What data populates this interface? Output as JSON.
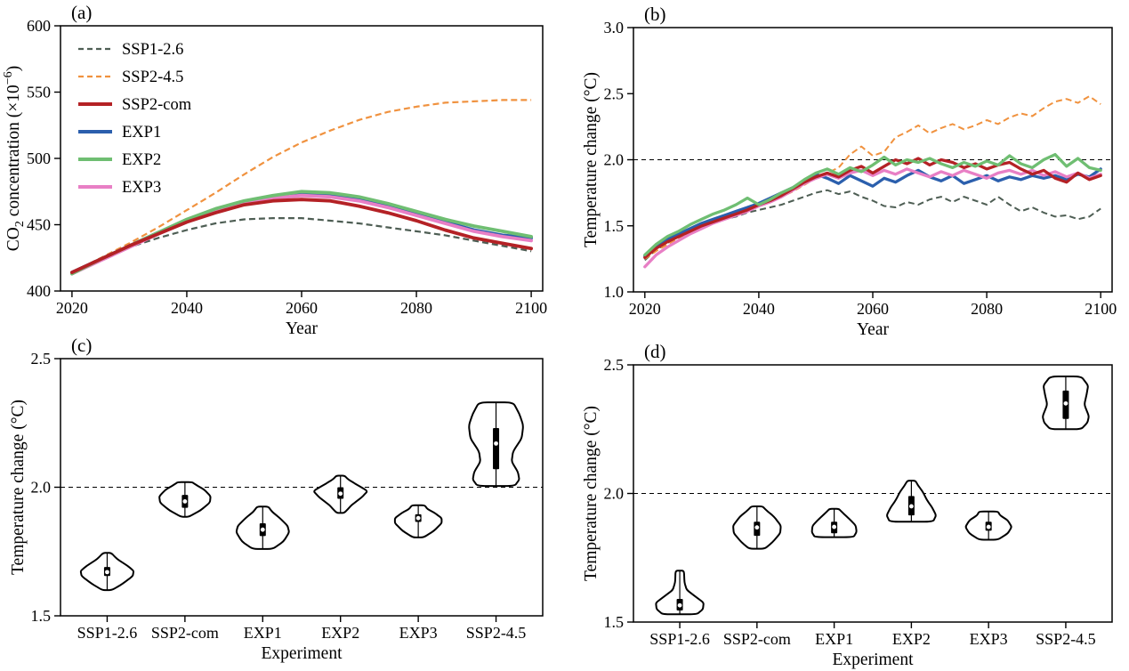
{
  "figure": {
    "background": "#ffffff",
    "panel_letters": [
      "(a)",
      "(b)",
      "(c)",
      "(d)"
    ]
  },
  "chart_data": [
    {
      "id": "a",
      "type": "line",
      "letter": "(a)",
      "xlabel": "Year",
      "ylabel_parts": [
        {
          "t": "CO"
        },
        {
          "t": "2",
          "pos": "sub"
        },
        {
          "t": " concentration (×10"
        },
        {
          "t": "−6",
          "pos": "sup"
        },
        {
          "t": ")"
        }
      ],
      "xlim": [
        2018,
        2102
      ],
      "ylim": [
        400,
        600
      ],
      "xticks": [
        2020,
        2040,
        2060,
        2080,
        2100
      ],
      "yticks": [
        400,
        450,
        500,
        550,
        600
      ],
      "ytick_decimals": 0,
      "legend": true,
      "refline": null,
      "draw_order": [
        0,
        1,
        3,
        5,
        4,
        2
      ],
      "x": [
        2020,
        2025,
        2030,
        2035,
        2040,
        2045,
        2050,
        2055,
        2060,
        2065,
        2070,
        2075,
        2080,
        2085,
        2090,
        2095,
        2100
      ],
      "series": [
        {
          "name": "SSP1-2.6",
          "color": "#4E5E54",
          "dash": [
            7,
            4
          ],
          "lw": 2.2,
          "values": [
            414,
            424,
            433,
            440,
            446,
            451,
            454,
            455,
            455,
            453,
            451,
            448,
            445,
            442,
            438,
            434,
            430
          ]
        },
        {
          "name": "SSP2-4.5",
          "color": "#F0923F",
          "dash": [
            7,
            4
          ],
          "lw": 2.2,
          "values": [
            414,
            425,
            436,
            448,
            461,
            474,
            488,
            501,
            512,
            521,
            529,
            535,
            539,
            542,
            543,
            544,
            544
          ]
        },
        {
          "name": "SSP2-com",
          "color": "#B42125",
          "dash": null,
          "lw": 3.8,
          "values": [
            414,
            424,
            434,
            443,
            452,
            459,
            465,
            468,
            469,
            468,
            464,
            459,
            453,
            446,
            440,
            436,
            432
          ]
        },
        {
          "name": "EXP1",
          "color": "#2B5FAD",
          "dash": null,
          "lw": 3.8,
          "values": [
            414,
            424,
            434,
            444,
            453,
            461,
            467,
            471,
            473,
            472,
            469,
            464,
            458,
            452,
            446,
            442,
            440
          ]
        },
        {
          "name": "EXP2",
          "color": "#6FBE72",
          "dash": null,
          "lw": 3.8,
          "values": [
            413,
            424,
            434,
            444,
            454,
            462,
            468,
            472,
            475,
            474,
            471,
            466,
            460,
            454,
            449,
            445,
            441
          ]
        },
        {
          "name": "EXP3",
          "color": "#E87FC5",
          "dash": null,
          "lw": 3.8,
          "values": [
            413,
            423,
            433,
            443,
            452,
            460,
            466,
            470,
            472,
            471,
            468,
            463,
            457,
            451,
            445,
            441,
            438
          ]
        }
      ]
    },
    {
      "id": "b",
      "type": "line",
      "letter": "(b)",
      "xlabel": "Year",
      "ylabel_parts": [
        {
          "t": "Temperature change (°C)"
        }
      ],
      "xlim": [
        2018,
        2102
      ],
      "ylim": [
        1.0,
        3.0
      ],
      "xticks": [
        2020,
        2040,
        2060,
        2080,
        2100
      ],
      "yticks": [
        1.0,
        1.5,
        2.0,
        2.5,
        3.0
      ],
      "ytick_decimals": 1,
      "legend": false,
      "refline": 2.0,
      "draw_order": [
        0,
        1,
        3,
        5,
        2,
        4
      ],
      "x": [
        2020,
        2022,
        2024,
        2026,
        2028,
        2030,
        2032,
        2034,
        2036,
        2038,
        2040,
        2042,
        2044,
        2046,
        2048,
        2050,
        2052,
        2054,
        2056,
        2058,
        2060,
        2062,
        2064,
        2066,
        2068,
        2070,
        2072,
        2074,
        2076,
        2078,
        2080,
        2082,
        2084,
        2086,
        2088,
        2090,
        2092,
        2094,
        2096,
        2098,
        2100
      ],
      "series": [
        {
          "name": "SSP1-2.6",
          "color": "#4E5E54",
          "dash": [
            7,
            4
          ],
          "lw": 2.0,
          "values": [
            1.24,
            1.32,
            1.37,
            1.42,
            1.45,
            1.49,
            1.52,
            1.55,
            1.57,
            1.6,
            1.62,
            1.64,
            1.66,
            1.69,
            1.72,
            1.75,
            1.77,
            1.74,
            1.76,
            1.72,
            1.69,
            1.65,
            1.64,
            1.68,
            1.66,
            1.7,
            1.72,
            1.68,
            1.72,
            1.69,
            1.66,
            1.72,
            1.66,
            1.61,
            1.64,
            1.6,
            1.57,
            1.58,
            1.55,
            1.57,
            1.63
          ]
        },
        {
          "name": "SSP2-4.5",
          "color": "#F0923F",
          "dash": [
            7,
            4
          ],
          "lw": 2.0,
          "values": [
            1.25,
            1.31,
            1.36,
            1.41,
            1.45,
            1.49,
            1.52,
            1.55,
            1.59,
            1.62,
            1.65,
            1.69,
            1.72,
            1.76,
            1.81,
            1.86,
            1.9,
            1.94,
            2.04,
            2.1,
            2.03,
            2.06,
            2.17,
            2.21,
            2.26,
            2.2,
            2.24,
            2.27,
            2.23,
            2.26,
            2.3,
            2.27,
            2.32,
            2.35,
            2.33,
            2.39,
            2.44,
            2.46,
            2.43,
            2.48,
            2.42
          ]
        },
        {
          "name": "SSP2-com",
          "color": "#B42125",
          "dash": null,
          "lw": 3.3,
          "values": [
            1.26,
            1.33,
            1.38,
            1.42,
            1.46,
            1.5,
            1.53,
            1.56,
            1.59,
            1.62,
            1.66,
            1.69,
            1.73,
            1.78,
            1.83,
            1.87,
            1.9,
            1.87,
            1.92,
            1.95,
            1.9,
            1.95,
            2.0,
            1.97,
            2.01,
            1.96,
            2.0,
            1.98,
            1.94,
            1.97,
            1.93,
            1.96,
            1.98,
            1.93,
            1.89,
            1.92,
            1.86,
            1.83,
            1.9,
            1.85,
            1.88
          ]
        },
        {
          "name": "EXP1",
          "color": "#2B5FAD",
          "dash": null,
          "lw": 3.3,
          "values": [
            1.27,
            1.35,
            1.4,
            1.44,
            1.48,
            1.52,
            1.55,
            1.58,
            1.61,
            1.64,
            1.67,
            1.71,
            1.75,
            1.79,
            1.84,
            1.89,
            1.86,
            1.82,
            1.88,
            1.84,
            1.8,
            1.86,
            1.83,
            1.88,
            1.92,
            1.87,
            1.84,
            1.88,
            1.82,
            1.85,
            1.88,
            1.84,
            1.87,
            1.85,
            1.88,
            1.86,
            1.88,
            1.85,
            1.89,
            1.87,
            1.93
          ]
        },
        {
          "name": "EXP2",
          "color": "#6FBE72",
          "dash": null,
          "lw": 3.3,
          "values": [
            1.28,
            1.36,
            1.42,
            1.46,
            1.51,
            1.55,
            1.59,
            1.62,
            1.66,
            1.71,
            1.66,
            1.7,
            1.75,
            1.79,
            1.85,
            1.9,
            1.93,
            1.89,
            1.94,
            1.91,
            1.96,
            2.02,
            1.96,
            2.0,
            1.98,
            2.01,
            1.97,
            1.94,
            1.98,
            1.95,
            1.99,
            1.96,
            2.03,
            1.97,
            1.94,
            2.0,
            2.04,
            1.95,
            2.01,
            1.94,
            1.92
          ]
        },
        {
          "name": "EXP3",
          "color": "#E87FC5",
          "dash": null,
          "lw": 3.3,
          "values": [
            1.19,
            1.28,
            1.34,
            1.39,
            1.44,
            1.48,
            1.52,
            1.55,
            1.58,
            1.61,
            1.65,
            1.68,
            1.72,
            1.77,
            1.82,
            1.86,
            1.89,
            1.86,
            1.9,
            1.92,
            1.88,
            1.92,
            1.89,
            1.93,
            1.9,
            1.87,
            1.91,
            1.88,
            1.92,
            1.89,
            1.86,
            1.9,
            1.92,
            1.89,
            1.92,
            1.88,
            1.91,
            1.87,
            1.9,
            1.86,
            1.89
          ]
        }
      ]
    },
    {
      "id": "c",
      "type": "violin",
      "letter": "(c)",
      "xlabel": "Experiment",
      "ylabel_parts": [
        {
          "t": "Temperature change (°C)"
        }
      ],
      "ylim": [
        1.5,
        2.5
      ],
      "yticks": [
        1.5,
        2.0,
        2.5
      ],
      "ytick_decimals": 1,
      "refline": 2.0,
      "categories": [
        "SSP1-2.6",
        "SSP2-com",
        "EXP1",
        "EXP2",
        "EXP3",
        "SSP2-4.5"
      ],
      "violins": [
        {
          "label": "SSP1-2.6",
          "min": 1.6,
          "q1": 1.655,
          "median": 1.67,
          "q3": 1.69,
          "max": 1.745,
          "profile": [
            [
              1.6,
              0.06
            ],
            [
              1.625,
              0.2
            ],
            [
              1.655,
              0.33
            ],
            [
              1.675,
              0.34
            ],
            [
              1.695,
              0.26
            ],
            [
              1.72,
              0.13
            ],
            [
              1.745,
              0.05
            ]
          ]
        },
        {
          "label": "SSP2-com",
          "min": 1.885,
          "q1": 1.92,
          "median": 1.945,
          "q3": 1.97,
          "max": 2.02,
          "profile": [
            [
              1.885,
              0.05
            ],
            [
              1.91,
              0.2
            ],
            [
              1.94,
              0.32
            ],
            [
              1.965,
              0.33
            ],
            [
              1.99,
              0.25
            ],
            [
              2.01,
              0.14
            ],
            [
              2.02,
              0.09
            ]
          ]
        },
        {
          "label": "EXP1",
          "min": 1.76,
          "q1": 1.81,
          "median": 1.835,
          "q3": 1.86,
          "max": 1.925,
          "profile": [
            [
              1.76,
              0.13
            ],
            [
              1.79,
              0.27
            ],
            [
              1.825,
              0.34
            ],
            [
              1.85,
              0.32
            ],
            [
              1.88,
              0.22
            ],
            [
              1.905,
              0.12
            ],
            [
              1.925,
              0.07
            ]
          ]
        },
        {
          "label": "EXP2",
          "min": 1.9,
          "q1": 1.955,
          "median": 1.975,
          "q3": 2.0,
          "max": 2.045,
          "profile": [
            [
              1.9,
              0.05
            ],
            [
              1.93,
              0.14
            ],
            [
              1.96,
              0.27
            ],
            [
              1.985,
              0.35
            ],
            [
              2.01,
              0.21
            ],
            [
              2.03,
              0.1
            ],
            [
              2.045,
              0.05
            ]
          ]
        },
        {
          "label": "EXP3",
          "min": 1.805,
          "q1": 1.865,
          "median": 1.88,
          "q3": 1.895,
          "max": 1.93,
          "profile": [
            [
              1.805,
              0.07
            ],
            [
              1.83,
              0.2
            ],
            [
              1.86,
              0.3
            ],
            [
              1.88,
              0.3
            ],
            [
              1.9,
              0.21
            ],
            [
              1.915,
              0.12
            ],
            [
              1.93,
              0.08
            ]
          ]
        },
        {
          "label": "SSP2-4.5",
          "min": 2.005,
          "q1": 2.07,
          "median": 2.17,
          "q3": 2.23,
          "max": 2.33,
          "profile": [
            [
              2.005,
              0.24
            ],
            [
              2.03,
              0.3
            ],
            [
              2.06,
              0.28
            ],
            [
              2.1,
              0.2
            ],
            [
              2.14,
              0.22
            ],
            [
              2.19,
              0.33
            ],
            [
              2.24,
              0.35
            ],
            [
              2.285,
              0.3
            ],
            [
              2.33,
              0.22
            ]
          ]
        }
      ]
    },
    {
      "id": "d",
      "type": "violin",
      "letter": "(d)",
      "xlabel": "Experiment",
      "ylabel_parts": [
        {
          "t": "Temperature change (°C)"
        }
      ],
      "ylim": [
        1.5,
        2.5
      ],
      "yticks": [
        1.5,
        2.0,
        2.5
      ],
      "ytick_decimals": 1,
      "refline": 2.0,
      "categories": [
        "SSP1-2.6",
        "SSP2-com",
        "EXP1",
        "EXP2",
        "EXP3",
        "SSP2-4.5"
      ],
      "violins": [
        {
          "label": "SSP1-2.6",
          "min": 1.53,
          "q1": 1.545,
          "median": 1.565,
          "q3": 1.59,
          "max": 1.7,
          "profile": [
            [
              1.53,
              0.22
            ],
            [
              1.55,
              0.3
            ],
            [
              1.575,
              0.31
            ],
            [
              1.6,
              0.2
            ],
            [
              1.625,
              0.09
            ],
            [
              1.655,
              0.06
            ],
            [
              1.7,
              0.055
            ]
          ]
        },
        {
          "label": "SSP2-com",
          "min": 1.785,
          "q1": 1.835,
          "median": 1.868,
          "q3": 1.89,
          "max": 1.95,
          "profile": [
            [
              1.785,
              0.1
            ],
            [
              1.81,
              0.2
            ],
            [
              1.845,
              0.3
            ],
            [
              1.875,
              0.31
            ],
            [
              1.91,
              0.22
            ],
            [
              1.935,
              0.12
            ],
            [
              1.95,
              0.07
            ]
          ]
        },
        {
          "label": "EXP1",
          "min": 1.83,
          "q1": 1.845,
          "median": 1.87,
          "q3": 1.89,
          "max": 1.94,
          "profile": [
            [
              1.83,
              0.25
            ],
            [
              1.85,
              0.29
            ],
            [
              1.875,
              0.28
            ],
            [
              1.9,
              0.2
            ],
            [
              1.925,
              0.11
            ],
            [
              1.94,
              0.06
            ]
          ]
        },
        {
          "label": "EXP2",
          "min": 1.89,
          "q1": 1.915,
          "median": 1.95,
          "q3": 1.99,
          "max": 2.05,
          "profile": [
            [
              1.89,
              0.28
            ],
            [
              1.915,
              0.32
            ],
            [
              1.945,
              0.27
            ],
            [
              1.975,
              0.2
            ],
            [
              2.005,
              0.15
            ],
            [
              2.03,
              0.09
            ],
            [
              2.05,
              0.05
            ]
          ]
        },
        {
          "label": "EXP3",
          "min": 1.82,
          "q1": 1.855,
          "median": 1.87,
          "q3": 1.89,
          "max": 1.93,
          "profile": [
            [
              1.82,
              0.12
            ],
            [
              1.845,
              0.25
            ],
            [
              1.87,
              0.3
            ],
            [
              1.895,
              0.25
            ],
            [
              1.915,
              0.15
            ],
            [
              1.93,
              0.12
            ]
          ]
        },
        {
          "label": "SSP2-4.5",
          "min": 2.25,
          "q1": 2.29,
          "median": 2.35,
          "q3": 2.4,
          "max": 2.455,
          "profile": [
            [
              2.25,
              0.2
            ],
            [
              2.275,
              0.28
            ],
            [
              2.3,
              0.3
            ],
            [
              2.345,
              0.24
            ],
            [
              2.385,
              0.27
            ],
            [
              2.42,
              0.29
            ],
            [
              2.455,
              0.2
            ]
          ]
        }
      ]
    }
  ]
}
